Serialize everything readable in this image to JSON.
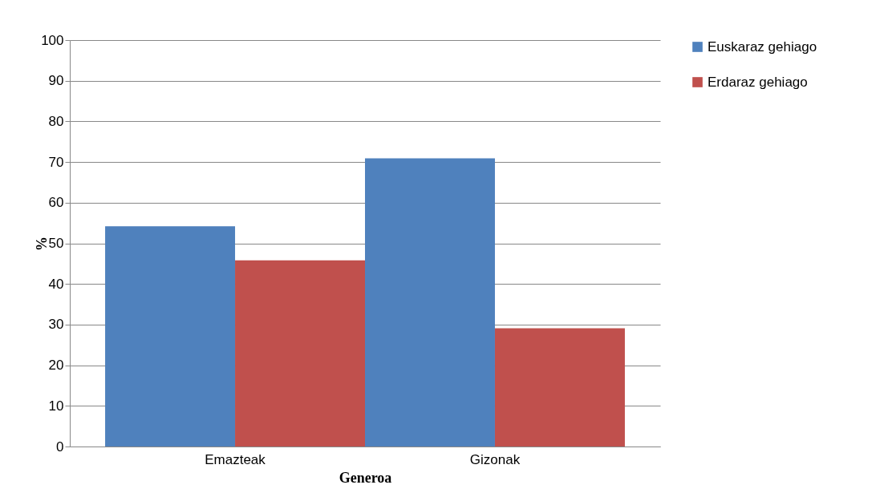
{
  "chart_data": {
    "type": "bar",
    "xlabel": "Generoa",
    "ylabel": "%",
    "categories": [
      "Emazteak",
      "Gizonak"
    ],
    "series": [
      {
        "name": "Euskaraz gehiago",
        "color": "#4f81bd",
        "values": [
          54.2,
          70.9
        ]
      },
      {
        "name": "Erdaraz gehiago",
        "color": "#c0504d",
        "values": [
          45.8,
          29.1
        ]
      }
    ],
    "ylim": [
      0,
      100
    ],
    "yticks": [
      0,
      10,
      20,
      30,
      40,
      50,
      60,
      70,
      80,
      90,
      100
    ],
    "grid": "y",
    "legend": "right"
  }
}
